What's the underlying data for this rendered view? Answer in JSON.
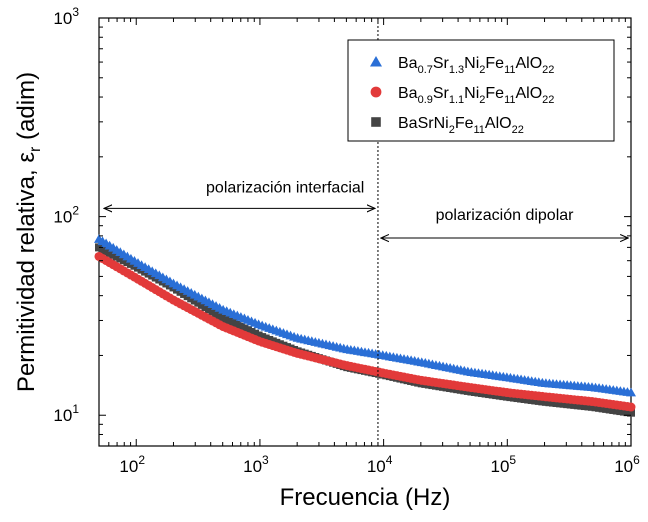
{
  "chart_data": {
    "type": "scatter",
    "title": "",
    "xlabel": "Frecuencia (Hz)",
    "ylabel": "Permitividad relativa, ε",
    "ylabel_sub": "r",
    "ylabel_unit": " (adim)",
    "xscale": "log",
    "yscale": "log",
    "xlim": [
      50,
      1000000
    ],
    "ylim": [
      7,
      1000
    ],
    "x_ticks": [
      {
        "value": 100,
        "base": "10",
        "exp": "2"
      },
      {
        "value": 1000,
        "base": "10",
        "exp": "3"
      },
      {
        "value": 10000,
        "base": "10",
        "exp": "4"
      },
      {
        "value": 100000,
        "base": "10",
        "exp": "5"
      },
      {
        "value": 1000000,
        "base": "10",
        "exp": "6"
      }
    ],
    "y_ticks": [
      {
        "value": 10,
        "base": "10",
        "exp": "1"
      },
      {
        "value": 100,
        "base": "10",
        "exp": "2"
      },
      {
        "value": 1000,
        "base": "10",
        "exp": "3"
      }
    ],
    "legend_position": "top-right",
    "divider_x": 9000,
    "annotations": [
      {
        "text": "polarización interfacial",
        "arrow_from_x": 55,
        "arrow_to_x": 8500,
        "arrow_y": 110,
        "text_y": 140,
        "text_x": 1600
      },
      {
        "text": "polarización dipolar",
        "arrow_from_x": 9500,
        "arrow_to_x": 950000,
        "arrow_y": 78,
        "text_y": 102,
        "text_x": 95000
      }
    ],
    "series": [
      {
        "name": "Ba0.7Sr1.3Ni2Fe11AlO22",
        "label_parts": [
          [
            "Ba",
            ""
          ],
          [
            "0.7",
            "sub"
          ],
          [
            "Sr",
            ""
          ],
          [
            "1.3",
            "sub"
          ],
          [
            "Ni",
            ""
          ],
          [
            "2",
            "sub"
          ],
          [
            "Fe",
            ""
          ],
          [
            "11",
            "sub"
          ],
          [
            "AlO",
            ""
          ],
          [
            "22",
            "sub"
          ]
        ],
        "marker": "triangle",
        "color": "#2a6fd6",
        "points": [
          [
            50,
            77
          ],
          [
            100,
            59
          ],
          [
            200,
            46
          ],
          [
            500,
            34
          ],
          [
            1000,
            28.5
          ],
          [
            2000,
            24.5
          ],
          [
            5000,
            21.5
          ],
          [
            10000,
            20
          ],
          [
            20000,
            18.5
          ],
          [
            50000,
            16.5
          ],
          [
            100000,
            15.5
          ],
          [
            200000,
            14.5
          ],
          [
            500000,
            13.8
          ],
          [
            1000000,
            13
          ]
        ]
      },
      {
        "name": "Ba0.9Sr1.1Ni2Fe11AlO22",
        "label_parts": [
          [
            "Ba",
            ""
          ],
          [
            "0.9",
            "sub"
          ],
          [
            "Sr",
            ""
          ],
          [
            "1.1",
            "sub"
          ],
          [
            "Ni",
            ""
          ],
          [
            "2",
            "sub"
          ],
          [
            "Fe",
            ""
          ],
          [
            "11",
            "sub"
          ],
          [
            "AlO",
            ""
          ],
          [
            "22",
            "sub"
          ]
        ],
        "marker": "circle",
        "color": "#e23a3a",
        "points": [
          [
            50,
            63
          ],
          [
            100,
            49
          ],
          [
            200,
            38
          ],
          [
            500,
            28
          ],
          [
            1000,
            23.5
          ],
          [
            2000,
            20.5
          ],
          [
            5000,
            17.8
          ],
          [
            10000,
            16.3
          ],
          [
            20000,
            15
          ],
          [
            50000,
            13.8
          ],
          [
            100000,
            13
          ],
          [
            200000,
            12.4
          ],
          [
            500000,
            11.7
          ],
          [
            1000000,
            11
          ]
        ]
      },
      {
        "name": "BaSrNi2Fe11AlO22",
        "label_parts": [
          [
            "BaSrNi",
            ""
          ],
          [
            "2",
            "sub"
          ],
          [
            "Fe",
            ""
          ],
          [
            "11",
            "sub"
          ],
          [
            "AlO",
            ""
          ],
          [
            "22",
            "sub"
          ]
        ],
        "marker": "square",
        "color": "#444444",
        "points": [
          [
            50,
            70
          ],
          [
            100,
            56
          ],
          [
            200,
            44
          ],
          [
            500,
            31
          ],
          [
            1000,
            25
          ],
          [
            2000,
            21
          ],
          [
            5000,
            17.5
          ],
          [
            10000,
            16
          ],
          [
            20000,
            14.5
          ],
          [
            50000,
            13.2
          ],
          [
            100000,
            12.4
          ],
          [
            200000,
            11.7
          ],
          [
            500000,
            11
          ],
          [
            1000000,
            10.3
          ]
        ]
      }
    ]
  }
}
